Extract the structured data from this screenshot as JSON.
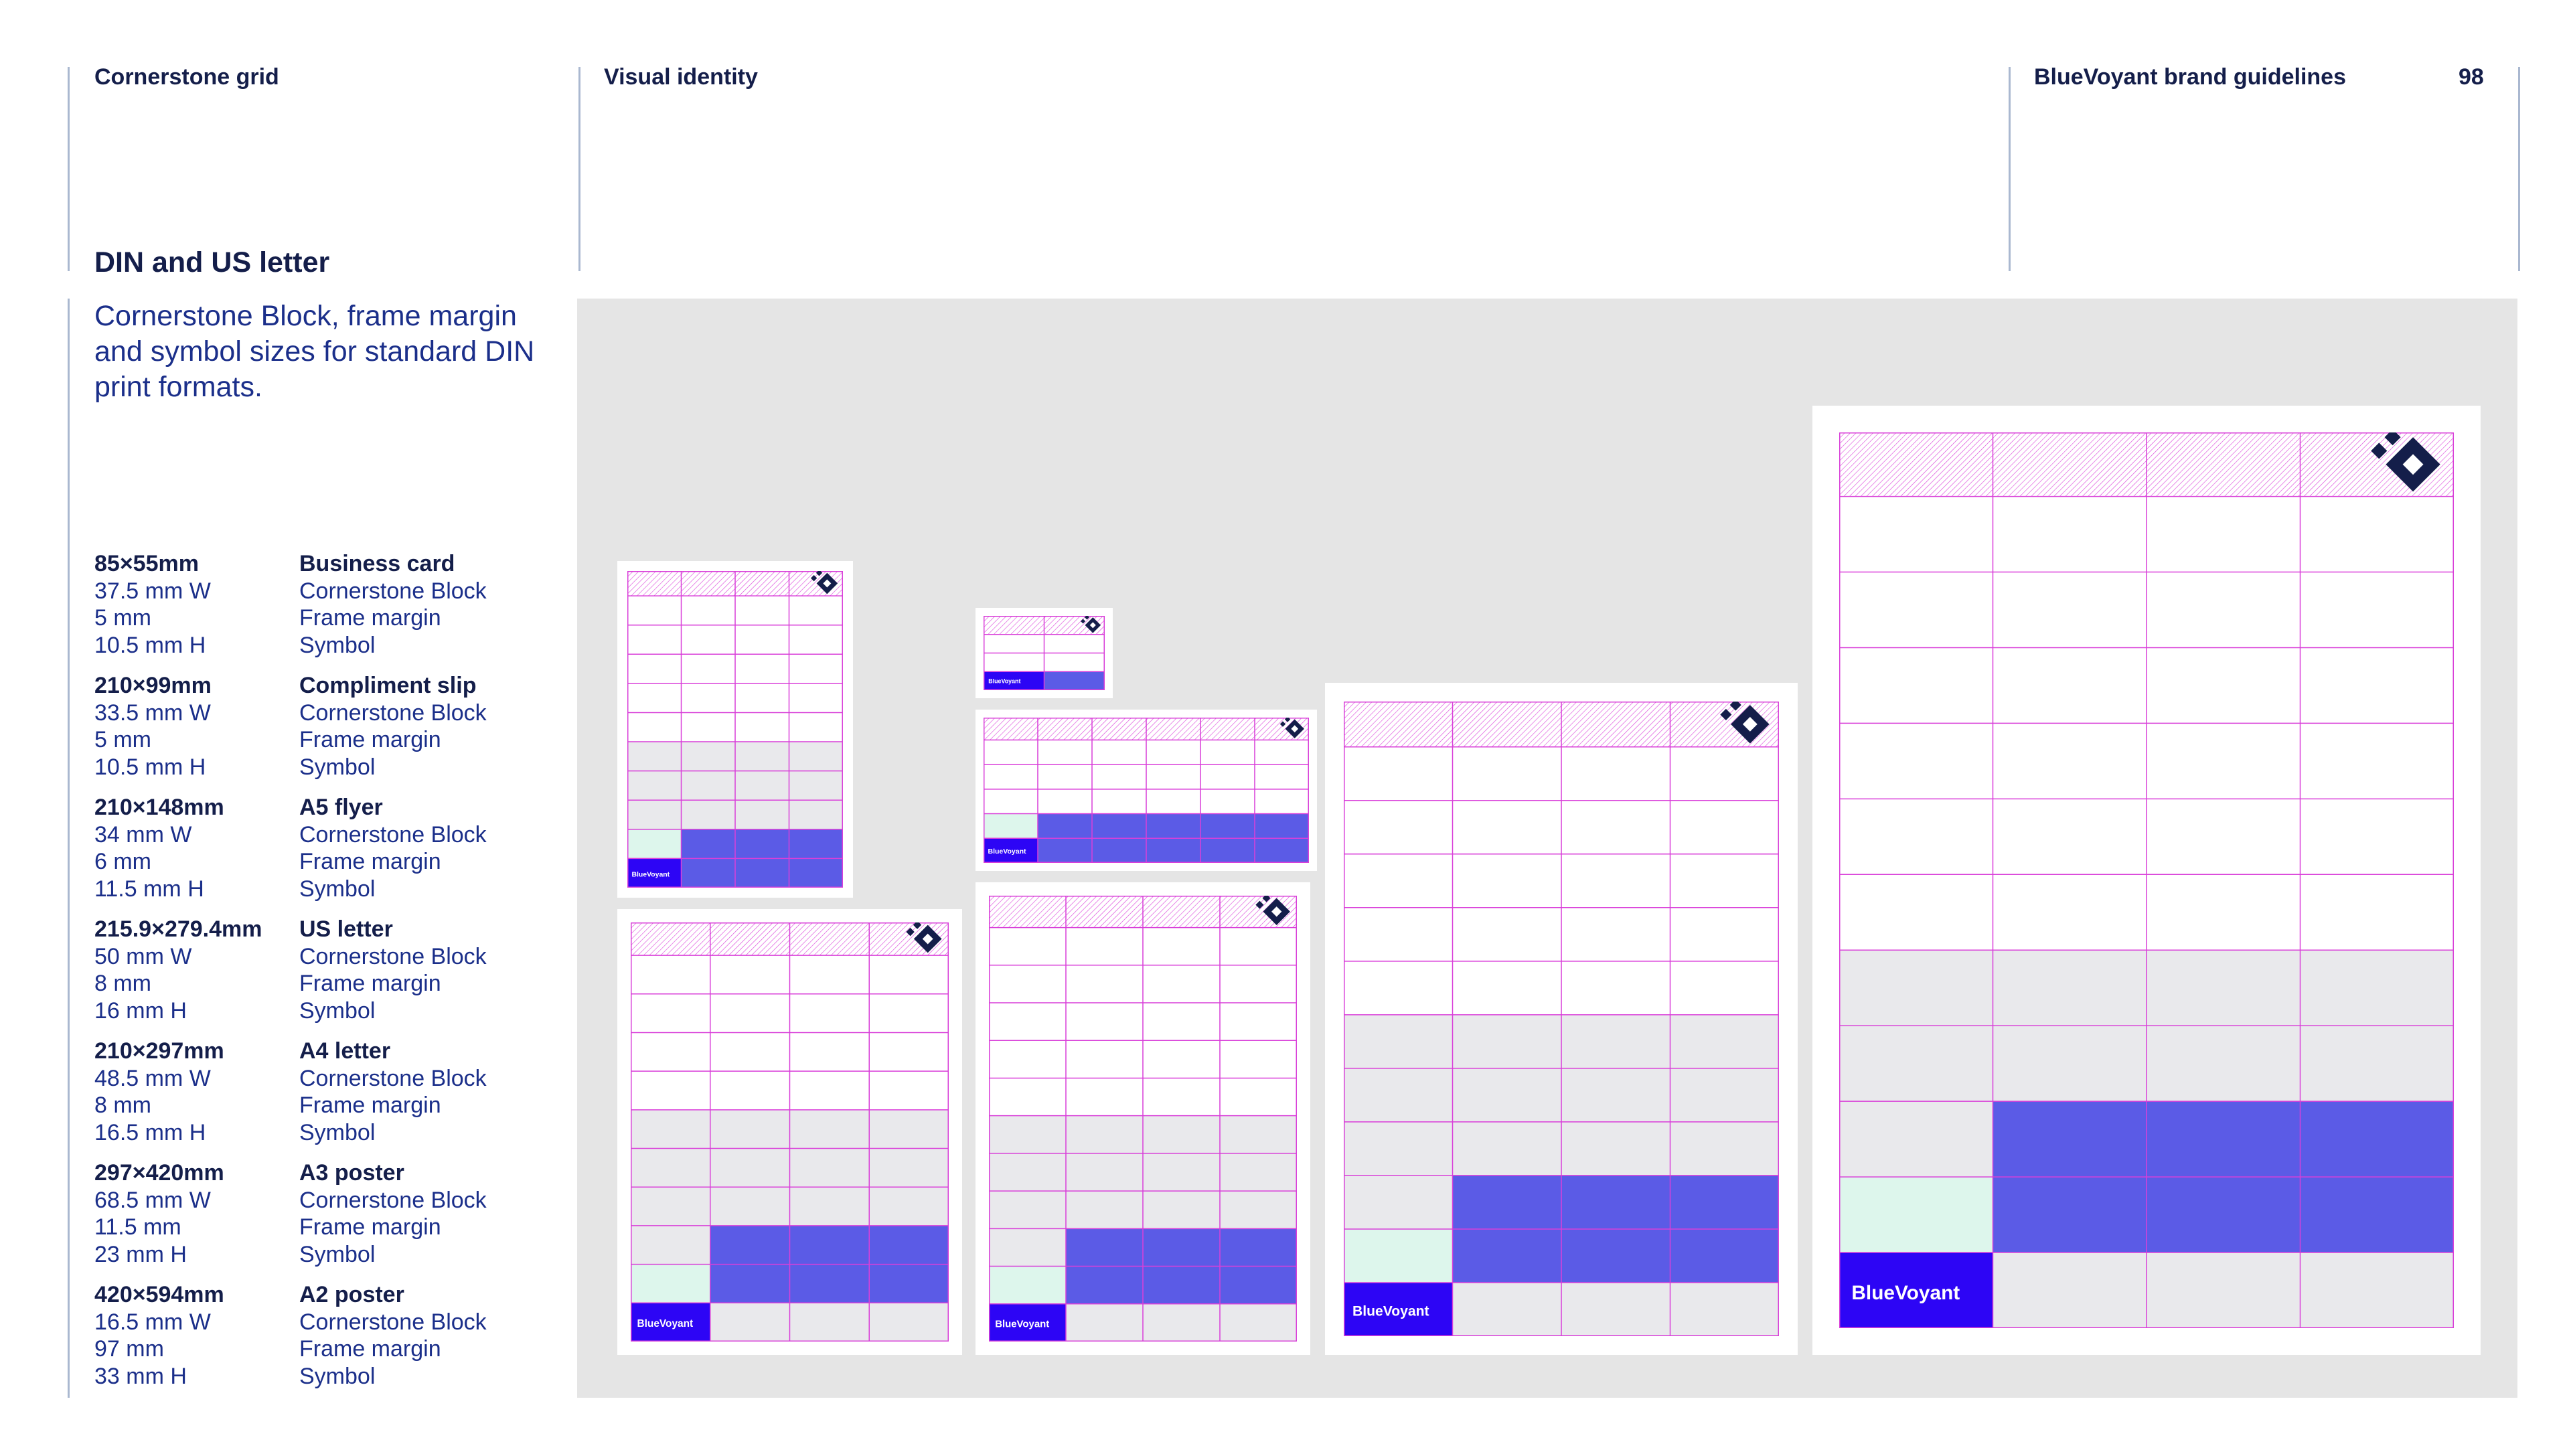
{
  "header": {
    "section": "Cornerstone grid",
    "chapter": "Visual identity",
    "doc_title": "BlueVoyant brand guidelines",
    "page_number": "98"
  },
  "title": "DIN and US letter",
  "intro": "Cornerstone Block, frame margin and symbol sizes for standard DIN print formats.",
  "specs": [
    {
      "size": "85×55mm",
      "name": "Business card",
      "block": "37.5 mm W",
      "margin": "5 mm",
      "symbol": "10.5 mm H",
      "block_label": "Cornerstone Block",
      "margin_label": "Frame margin",
      "symbol_label": "Symbol"
    },
    {
      "size": "210×99mm",
      "name": "Compliment slip",
      "block": "33.5 mm W",
      "margin": "5 mm",
      "symbol": "10.5 mm H",
      "block_label": "Cornerstone Block",
      "margin_label": "Frame margin",
      "symbol_label": "Symbol"
    },
    {
      "size": "210×148mm",
      "name": "A5 flyer",
      "block": "34 mm W",
      "margin": "6 mm",
      "symbol": "11.5 mm H",
      "block_label": "Cornerstone Block",
      "margin_label": "Frame margin",
      "symbol_label": "Symbol"
    },
    {
      "size": "215.9×279.4mm",
      "name": "US letter",
      "block": "50 mm W",
      "margin": "8 mm",
      "symbol": "16 mm H",
      "block_label": "Cornerstone Block",
      "margin_label": "Frame margin",
      "symbol_label": "Symbol"
    },
    {
      "size": "210×297mm",
      "name": "A4 letter",
      "block": "48.5 mm W",
      "margin": "8 mm",
      "symbol": "16.5 mm H",
      "block_label": "Cornerstone Block",
      "margin_label": "Frame margin",
      "symbol_label": "Symbol"
    },
    {
      "size": "297×420mm",
      "name": "A3 poster",
      "block": "68.5 mm W",
      "margin": "11.5 mm",
      "symbol": "23 mm H",
      "block_label": "Cornerstone Block",
      "margin_label": "Frame margin",
      "symbol_label": "Symbol"
    },
    {
      "size": "420×594mm",
      "name": "A2 poster",
      "block": "16.5 mm W",
      "margin": "97 mm",
      "symbol": "33 mm H",
      "block_label": "Cornerstone Block",
      "margin_label": "Frame margin",
      "symbol_label": "Symbol"
    }
  ],
  "logo_text": "BlueVoyant",
  "colors": {
    "navy": "#141e4a",
    "brand_blue": "#2d05f5",
    "violet_block": "#5b5be6",
    "mint": "#ddf6ec",
    "grey_cell": "#e9e9ec",
    "grid_line": "#d93fd9",
    "panel_bg": "#e5e5e5"
  },
  "formats": [
    {
      "id": "a5-portrait",
      "cols": 4,
      "rows": 10,
      "grey_from_row": 5,
      "purple_rows": [
        8,
        9
      ],
      "mint_rows": [
        8
      ],
      "logo_row": 9
    },
    {
      "id": "business-card",
      "cols": 2,
      "rows": 3,
      "grey_from_row": 99,
      "purple_rows": [
        2
      ],
      "mint_rows": [],
      "logo_row": 2
    },
    {
      "id": "compliment-slip",
      "cols": 6,
      "rows": 5,
      "grey_from_row": 3,
      "purple_rows": [
        3,
        4
      ],
      "mint_rows": [
        3
      ],
      "logo_row": 4
    },
    {
      "id": "us-letter",
      "cols": 4,
      "rows": 10,
      "grey_from_row": 4,
      "purple_rows": [
        7,
        8
      ],
      "mint_rows": [
        8
      ],
      "logo_row": 9
    },
    {
      "id": "a4-letter",
      "cols": 4,
      "rows": 11,
      "grey_from_row": 5,
      "purple_rows": [
        8,
        9
      ],
      "mint_rows": [
        9
      ],
      "logo_row": 10
    },
    {
      "id": "a3-poster",
      "cols": 4,
      "rows": 11,
      "grey_from_row": 5,
      "purple_rows": [
        8,
        9
      ],
      "mint_rows": [
        9
      ],
      "logo_row": 10
    },
    {
      "id": "a2-poster",
      "cols": 4,
      "rows": 11,
      "grey_from_row": 6,
      "purple_rows": [
        8,
        9
      ],
      "mint_rows": [
        9
      ],
      "logo_row": 10
    }
  ]
}
